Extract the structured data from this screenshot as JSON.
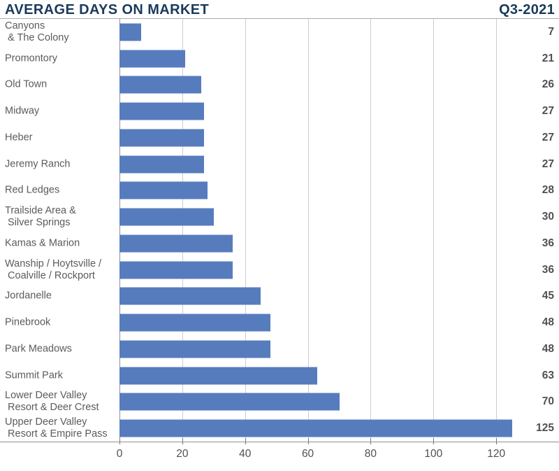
{
  "header": {
    "title": "AVERAGE DAYS ON MARKET",
    "period": "Q3-2021"
  },
  "chart_data": {
    "type": "bar",
    "orientation": "horizontal",
    "title": "AVERAGE DAYS ON MARKET",
    "subtitle": "Q3-2021",
    "categories": [
      "Canyons\n & The Colony",
      "Promontory",
      "Old Town",
      "Midway",
      "Heber",
      "Jeremy Ranch",
      "Red Ledges",
      "Trailside Area &\n Silver Springs",
      "Kamas & Marion",
      "Wanship / Hoytsville /\n Coalville / Rockport",
      "Jordanelle",
      "Pinebrook",
      "Park Meadows",
      "Summit Park",
      "Lower Deer Valley\n Resort & Deer Crest",
      "Upper Deer Valley\n Resort & Empire Pass"
    ],
    "values": [
      7,
      21,
      26,
      27,
      27,
      27,
      28,
      30,
      36,
      36,
      45,
      48,
      48,
      63,
      70,
      125
    ],
    "xlabel": "",
    "ylabel": "",
    "xticks": [
      0,
      20,
      40,
      60,
      80,
      100,
      120
    ],
    "xlim": [
      0,
      140
    ],
    "grid": "vertical",
    "legend": "none",
    "value_labels_position": "right-edge"
  },
  "colors": {
    "bar": "#577cbe",
    "title": "#1a3a5c",
    "category_label": "#5a5b5e",
    "value_label": "#4f5053",
    "gridline": "#cccdce",
    "axis_line": "#8f9193"
  }
}
